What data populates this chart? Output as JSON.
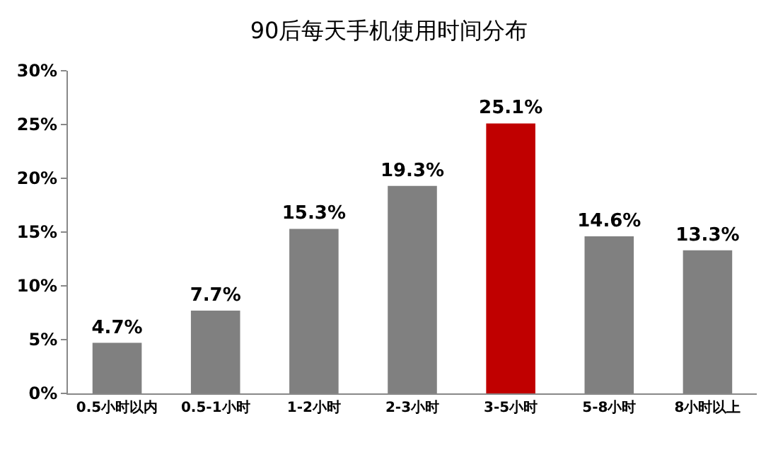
{
  "chart_data": {
    "type": "bar",
    "title": "90后每天手机使用时间分布",
    "categories": [
      "0.5小时以内",
      "0.5-1小时",
      "1-2小时",
      "2-3小时",
      "3-5小时",
      "5-8小时",
      "8小时以上"
    ],
    "values": [
      4.7,
      7.7,
      15.3,
      19.3,
      25.1,
      14.6,
      13.3
    ],
    "colors": [
      "#808080",
      "#808080",
      "#808080",
      "#808080",
      "#c00000",
      "#808080",
      "#808080"
    ],
    "value_labels": [
      "4.7%",
      "7.7%",
      "15.3%",
      "19.3%",
      "25.1%",
      "14.6%",
      "13.3%"
    ],
    "ylim": [
      0,
      30
    ],
    "yticks": [
      {
        "value": 0,
        "label": "0%"
      },
      {
        "value": 5,
        "label": "5%"
      },
      {
        "value": 10,
        "label": "10%"
      },
      {
        "value": 15,
        "label": "15%"
      },
      {
        "value": 20,
        "label": "20%"
      },
      {
        "value": 25,
        "label": "25%"
      },
      {
        "value": 30,
        "label": "30%"
      }
    ],
    "grid": false
  }
}
